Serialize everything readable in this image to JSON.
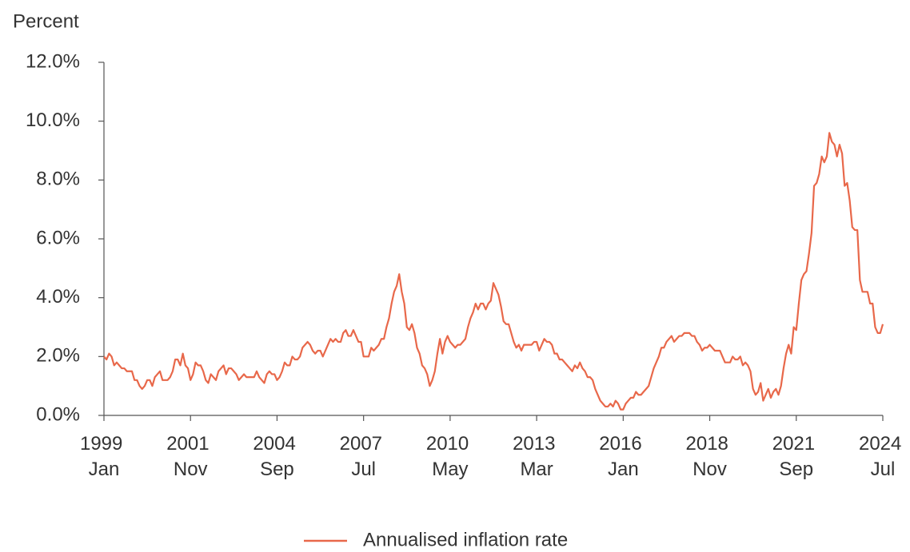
{
  "chart_data": {
    "type": "line",
    "y_label": "Percent",
    "x": [
      "1999 Jan",
      "1999 Feb",
      "1999 Mar",
      "1999 Apr",
      "1999 May",
      "1999 Jun",
      "1999 Jul",
      "1999 Aug",
      "1999 Sep",
      "1999 Oct",
      "1999 Nov",
      "1999 Dec",
      "2000 Jan",
      "2000 Feb",
      "2000 Mar",
      "2000 Apr",
      "2000 May",
      "2000 Jun",
      "2000 Jul",
      "2000 Aug",
      "2000 Sep",
      "2000 Oct",
      "2000 Nov",
      "2000 Dec",
      "2001 Jan",
      "2001 Feb",
      "2001 Mar",
      "2001 Apr",
      "2001 May",
      "2001 Jun",
      "2001 Jul",
      "2001 Aug",
      "2001 Sep",
      "2001 Oct",
      "2001 Nov",
      "2001 Dec",
      "2002 Jan",
      "2002 Feb",
      "2002 Mar",
      "2002 Apr",
      "2002 May",
      "2002 Jun",
      "2002 Jul",
      "2002 Aug",
      "2002 Sep",
      "2002 Oct",
      "2002 Nov",
      "2002 Dec",
      "2003 Jan",
      "2003 Feb",
      "2003 Mar",
      "2003 Apr",
      "2003 May",
      "2003 Jun",
      "2003 Jul",
      "2003 Aug",
      "2003 Sep",
      "2003 Oct",
      "2003 Nov",
      "2003 Dec",
      "2004 Jan",
      "2004 Feb",
      "2004 Mar",
      "2004 Apr",
      "2004 May",
      "2004 Jun",
      "2004 Jul",
      "2004 Aug",
      "2004 Sep",
      "2004 Oct",
      "2004 Nov",
      "2004 Dec",
      "2005 Jan",
      "2005 Feb",
      "2005 Mar",
      "2005 Apr",
      "2005 May",
      "2005 Jun",
      "2005 Jul",
      "2005 Aug",
      "2005 Sep",
      "2005 Oct",
      "2005 Nov",
      "2005 Dec",
      "2006 Jan",
      "2006 Feb",
      "2006 Mar",
      "2006 Apr",
      "2006 May",
      "2006 Jun",
      "2006 Jul",
      "2006 Aug",
      "2006 Sep",
      "2006 Oct",
      "2006 Nov",
      "2006 Dec",
      "2007 Jan",
      "2007 Feb",
      "2007 Mar",
      "2007 Apr",
      "2007 May",
      "2007 Jun",
      "2007 Jul",
      "2007 Aug",
      "2007 Sep",
      "2007 Oct",
      "2007 Nov",
      "2007 Dec",
      "2008 Jan",
      "2008 Feb",
      "2008 Mar",
      "2008 Apr",
      "2008 May",
      "2008 Jun",
      "2008 Jul",
      "2008 Aug",
      "2008 Sep",
      "2008 Oct",
      "2008 Nov",
      "2008 Dec",
      "2009 Jan",
      "2009 Feb",
      "2009 Mar",
      "2009 Apr",
      "2009 May",
      "2009 Jun",
      "2009 Jul",
      "2009 Aug",
      "2009 Sep",
      "2009 Oct",
      "2009 Nov",
      "2009 Dec",
      "2010 Jan",
      "2010 Feb",
      "2010 Mar",
      "2010 Apr",
      "2010 May",
      "2010 Jun",
      "2010 Jul",
      "2010 Aug",
      "2010 Sep",
      "2010 Oct",
      "2010 Nov",
      "2010 Dec",
      "2011 Jan",
      "2011 Feb",
      "2011 Mar",
      "2011 Apr",
      "2011 May",
      "2011 Jun",
      "2011 Jul",
      "2011 Aug",
      "2011 Sep",
      "2011 Oct",
      "2011 Nov",
      "2011 Dec",
      "2012 Jan",
      "2012 Feb",
      "2012 Mar",
      "2012 Apr",
      "2012 May",
      "2012 Jun",
      "2012 Jul",
      "2012 Aug",
      "2012 Sep",
      "2012 Oct",
      "2012 Nov",
      "2012 Dec",
      "2013 Jan",
      "2013 Feb",
      "2013 Mar",
      "2013 Apr",
      "2013 May",
      "2013 Jun",
      "2013 Jul",
      "2013 Aug",
      "2013 Sep",
      "2013 Oct",
      "2013 Nov",
      "2013 Dec",
      "2014 Jan",
      "2014 Feb",
      "2014 Mar",
      "2014 Apr",
      "2014 May",
      "2014 Jun",
      "2014 Jul",
      "2014 Aug",
      "2014 Sep",
      "2014 Oct",
      "2014 Nov",
      "2014 Dec",
      "2015 Jan",
      "2015 Feb",
      "2015 Mar",
      "2015 Apr",
      "2015 May",
      "2015 Jun",
      "2015 Jul",
      "2015 Aug",
      "2015 Sep",
      "2015 Oct",
      "2015 Nov",
      "2015 Dec",
      "2016 Jan",
      "2016 Feb",
      "2016 Mar",
      "2016 Apr",
      "2016 May",
      "2016 Jun",
      "2016 Jul",
      "2016 Aug",
      "2016 Sep",
      "2016 Oct",
      "2016 Nov",
      "2016 Dec",
      "2017 Jan",
      "2017 Feb",
      "2017 Mar",
      "2017 Apr",
      "2017 May",
      "2017 Jun",
      "2017 Jul",
      "2017 Aug",
      "2017 Sep",
      "2017 Oct",
      "2017 Nov",
      "2017 Dec",
      "2018 Jan",
      "2018 Feb",
      "2018 Mar",
      "2018 Apr",
      "2018 May",
      "2018 Jun",
      "2018 Jul",
      "2018 Aug",
      "2018 Sep",
      "2018 Oct",
      "2018 Nov",
      "2018 Dec",
      "2019 Jan",
      "2019 Feb",
      "2019 Mar",
      "2019 Apr",
      "2019 May",
      "2019 Jun",
      "2019 Jul",
      "2019 Aug",
      "2019 Sep",
      "2019 Oct",
      "2019 Nov",
      "2019 Dec",
      "2020 Jan",
      "2020 Feb",
      "2020 Mar",
      "2020 Apr",
      "2020 May",
      "2020 Jun",
      "2020 Jul",
      "2020 Aug",
      "2020 Sep",
      "2020 Oct",
      "2020 Nov",
      "2020 Dec",
      "2021 Jan",
      "2021 Feb",
      "2021 Mar",
      "2021 Apr",
      "2021 May",
      "2021 Jun",
      "2021 Jul",
      "2021 Aug",
      "2021 Sep",
      "2021 Oct",
      "2021 Nov",
      "2021 Dec",
      "2022 Jan",
      "2022 Feb",
      "2022 Mar",
      "2022 Apr",
      "2022 May",
      "2022 Jun",
      "2022 Jul",
      "2022 Aug",
      "2022 Sep",
      "2022 Oct",
      "2022 Nov",
      "2022 Dec",
      "2023 Jan",
      "2023 Feb",
      "2023 Mar",
      "2023 Apr",
      "2023 May",
      "2023 Jun",
      "2023 Jul",
      "2023 Aug",
      "2023 Sep",
      "2023 Oct",
      "2023 Nov",
      "2023 Dec",
      "2024 Jan",
      "2024 Feb",
      "2024 Mar",
      "2024 Apr",
      "2024 May",
      "2024 Jun",
      "2024 Jul"
    ],
    "series": [
      {
        "name": "Annualised inflation rate",
        "color": "#e8684a",
        "values": [
          2.0,
          1.9,
          2.1,
          2.0,
          1.7,
          1.8,
          1.7,
          1.6,
          1.6,
          1.5,
          1.5,
          1.5,
          1.2,
          1.2,
          1.0,
          0.9,
          1.0,
          1.2,
          1.2,
          1.0,
          1.3,
          1.4,
          1.5,
          1.2,
          1.2,
          1.2,
          1.3,
          1.5,
          1.9,
          1.9,
          1.7,
          2.1,
          1.7,
          1.6,
          1.2,
          1.4,
          1.8,
          1.7,
          1.7,
          1.5,
          1.2,
          1.1,
          1.4,
          1.3,
          1.2,
          1.5,
          1.6,
          1.7,
          1.4,
          1.6,
          1.6,
          1.5,
          1.4,
          1.2,
          1.3,
          1.4,
          1.3,
          1.3,
          1.3,
          1.3,
          1.5,
          1.3,
          1.2,
          1.1,
          1.4,
          1.5,
          1.4,
          1.4,
          1.2,
          1.3,
          1.5,
          1.8,
          1.7,
          1.7,
          2.0,
          1.9,
          1.9,
          2.0,
          2.3,
          2.4,
          2.5,
          2.4,
          2.2,
          2.1,
          2.2,
          2.2,
          2.0,
          2.2,
          2.4,
          2.6,
          2.5,
          2.6,
          2.5,
          2.5,
          2.8,
          2.9,
          2.7,
          2.7,
          2.9,
          2.7,
          2.5,
          2.5,
          2.0,
          2.0,
          2.0,
          2.3,
          2.2,
          2.3,
          2.4,
          2.6,
          2.6,
          3.0,
          3.3,
          3.8,
          4.2,
          4.4,
          4.8,
          4.2,
          3.8,
          3.0,
          2.9,
          3.1,
          2.8,
          2.3,
          2.1,
          1.7,
          1.6,
          1.4,
          1.0,
          1.2,
          1.5,
          2.1,
          2.6,
          2.1,
          2.5,
          2.7,
          2.5,
          2.4,
          2.3,
          2.4,
          2.4,
          2.5,
          2.6,
          3.0,
          3.3,
          3.5,
          3.8,
          3.6,
          3.8,
          3.8,
          3.6,
          3.8,
          3.9,
          4.5,
          4.3,
          4.1,
          3.7,
          3.2,
          3.1,
          3.1,
          2.8,
          2.5,
          2.3,
          2.4,
          2.2,
          2.4,
          2.4,
          2.4,
          2.4,
          2.5,
          2.5,
          2.2,
          2.4,
          2.6,
          2.5,
          2.5,
          2.4,
          2.1,
          2.1,
          1.9,
          1.9,
          1.8,
          1.7,
          1.6,
          1.5,
          1.7,
          1.6,
          1.8,
          1.6,
          1.5,
          1.3,
          1.3,
          1.2,
          0.9,
          0.7,
          0.5,
          0.4,
          0.3,
          0.3,
          0.4,
          0.3,
          0.5,
          0.4,
          0.2,
          0.2,
          0.4,
          0.5,
          0.6,
          0.6,
          0.8,
          0.7,
          0.7,
          0.8,
          0.9,
          1.0,
          1.3,
          1.6,
          1.8,
          2.0,
          2.3,
          2.3,
          2.5,
          2.6,
          2.7,
          2.5,
          2.6,
          2.7,
          2.7,
          2.8,
          2.8,
          2.8,
          2.7,
          2.7,
          2.5,
          2.4,
          2.2,
          2.3,
          2.3,
          2.4,
          2.3,
          2.2,
          2.2,
          2.2,
          2.0,
          1.8,
          1.8,
          1.8,
          2.0,
          1.9,
          1.9,
          2.0,
          1.7,
          1.8,
          1.7,
          1.5,
          0.9,
          0.7,
          0.8,
          1.1,
          0.5,
          0.7,
          0.9,
          0.6,
          0.8,
          0.9,
          0.7,
          1.0,
          1.6,
          2.1,
          2.4,
          2.1,
          3.0,
          2.9,
          3.8,
          4.6,
          4.8,
          4.9,
          5.5,
          6.2,
          7.8,
          7.9,
          8.2,
          8.8,
          8.6,
          8.8,
          9.6,
          9.3,
          9.2,
          8.8,
          9.2,
          8.9,
          7.8,
          7.9,
          7.3,
          6.4,
          6.3,
          6.3,
          4.6,
          4.2,
          4.2,
          4.2,
          3.8,
          3.8,
          3.0,
          2.8,
          2.8,
          3.1
        ]
      }
    ],
    "xticks": [
      "1999 Jan",
      "2001 Nov",
      "2004 Sep",
      "2007 Jul",
      "2010 May",
      "2013 Mar",
      "2016 Jan",
      "2018 Nov",
      "2021 Sep",
      "2024 Jul"
    ],
    "ylim": [
      0,
      12
    ],
    "yticks": [
      {
        "value": 0,
        "label": "0.0%"
      },
      {
        "value": 2,
        "label": "2.0%"
      },
      {
        "value": 4,
        "label": "4.0%"
      },
      {
        "value": 6,
        "label": "6.0%"
      },
      {
        "value": 8,
        "label": "8.0%"
      },
      {
        "value": 10,
        "label": "10.0%"
      },
      {
        "value": 12,
        "label": "12.0%"
      }
    ],
    "grid": false,
    "legend": "bottom"
  }
}
